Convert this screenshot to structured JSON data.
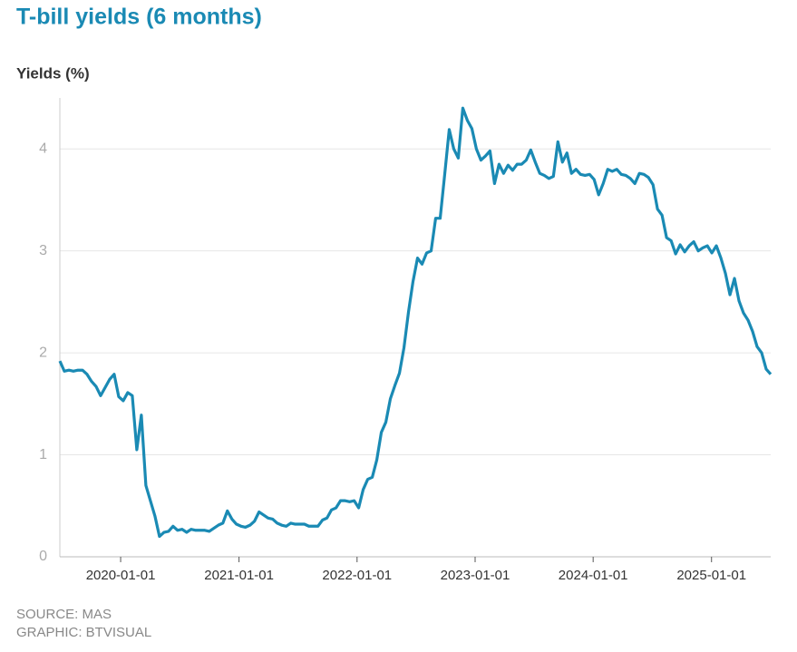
{
  "chart_data": {
    "type": "line",
    "title": "T-bill yields (6 months)",
    "y_label": "Yields (%)",
    "source": "SOURCE: MAS",
    "credit": "GRAPHIC: BTVISUAL",
    "x": [
      "2019-06-27",
      "2019-07-11",
      "2019-07-25",
      "2019-08-08",
      "2019-08-22",
      "2019-09-05",
      "2019-09-19",
      "2019-10-03",
      "2019-10-17",
      "2019-10-31",
      "2019-11-14",
      "2019-11-28",
      "2019-12-12",
      "2019-12-26",
      "2020-01-09",
      "2020-01-23",
      "2020-02-06",
      "2020-02-20",
      "2020-03-05",
      "2020-03-19",
      "2020-04-02",
      "2020-04-16",
      "2020-04-30",
      "2020-05-14",
      "2020-05-28",
      "2020-06-11",
      "2020-06-25",
      "2020-07-09",
      "2020-07-23",
      "2020-08-06",
      "2020-08-20",
      "2020-09-03",
      "2020-09-17",
      "2020-10-01",
      "2020-10-15",
      "2020-10-29",
      "2020-11-12",
      "2020-11-26",
      "2020-12-10",
      "2020-12-24",
      "2021-01-07",
      "2021-01-21",
      "2021-02-04",
      "2021-02-18",
      "2021-03-04",
      "2021-03-18",
      "2021-04-01",
      "2021-04-15",
      "2021-04-29",
      "2021-05-13",
      "2021-05-27",
      "2021-06-10",
      "2021-06-24",
      "2021-07-08",
      "2021-07-22",
      "2021-08-05",
      "2021-08-19",
      "2021-09-02",
      "2021-09-16",
      "2021-09-30",
      "2021-10-14",
      "2021-10-28",
      "2021-11-11",
      "2021-11-25",
      "2021-12-09",
      "2021-12-23",
      "2022-01-06",
      "2022-01-20",
      "2022-02-03",
      "2022-02-17",
      "2022-03-03",
      "2022-03-17",
      "2022-03-31",
      "2022-04-14",
      "2022-04-28",
      "2022-05-12",
      "2022-05-26",
      "2022-06-09",
      "2022-06-23",
      "2022-07-07",
      "2022-07-21",
      "2022-08-04",
      "2022-08-18",
      "2022-09-01",
      "2022-09-15",
      "2022-09-29",
      "2022-10-13",
      "2022-10-27",
      "2022-11-10",
      "2022-11-24",
      "2022-12-08",
      "2022-12-22",
      "2023-01-05",
      "2023-01-19",
      "2023-02-02",
      "2023-02-16",
      "2023-03-02",
      "2023-03-16",
      "2023-03-30",
      "2023-04-13",
      "2023-04-27",
      "2023-05-11",
      "2023-05-25",
      "2023-06-08",
      "2023-06-22",
      "2023-07-06",
      "2023-07-20",
      "2023-08-03",
      "2023-08-17",
      "2023-08-31",
      "2023-09-14",
      "2023-09-28",
      "2023-10-12",
      "2023-10-26",
      "2023-11-09",
      "2023-11-23",
      "2023-12-07",
      "2023-12-21",
      "2024-01-04",
      "2024-01-18",
      "2024-02-01",
      "2024-02-15",
      "2024-02-29",
      "2024-03-14",
      "2024-03-28",
      "2024-04-11",
      "2024-04-25",
      "2024-05-09",
      "2024-05-23",
      "2024-06-06",
      "2024-06-20",
      "2024-07-04",
      "2024-07-18",
      "2024-08-01",
      "2024-08-15",
      "2024-08-29",
      "2024-09-12",
      "2024-09-26",
      "2024-10-10",
      "2024-10-24",
      "2024-11-07",
      "2024-11-21",
      "2024-12-05",
      "2024-12-19",
      "2025-01-02",
      "2025-01-16",
      "2025-01-30",
      "2025-02-13",
      "2025-02-27",
      "2025-03-13",
      "2025-03-27",
      "2025-04-10",
      "2025-04-24",
      "2025-05-08",
      "2025-05-22",
      "2025-06-05",
      "2025-06-19",
      "2025-07-03"
    ],
    "series": [
      {
        "name": "6-month T-bill",
        "color": "#1a8ab4",
        "values": [
          1.92,
          1.82,
          1.83,
          1.82,
          1.83,
          1.83,
          1.79,
          1.72,
          1.67,
          1.58,
          1.66,
          1.74,
          1.79,
          1.57,
          1.53,
          1.61,
          1.58,
          1.05,
          1.39,
          0.7,
          0.55,
          0.4,
          0.2,
          0.24,
          0.25,
          0.3,
          0.26,
          0.27,
          0.24,
          0.27,
          0.26,
          0.26,
          0.26,
          0.25,
          0.28,
          0.31,
          0.33,
          0.45,
          0.37,
          0.32,
          0.3,
          0.29,
          0.31,
          0.35,
          0.44,
          0.41,
          0.38,
          0.37,
          0.33,
          0.31,
          0.3,
          0.33,
          0.32,
          0.32,
          0.32,
          0.3,
          0.3,
          0.3,
          0.36,
          0.38,
          0.46,
          0.48,
          0.55,
          0.55,
          0.54,
          0.55,
          0.48,
          0.66,
          0.76,
          0.78,
          0.95,
          1.22,
          1.32,
          1.55,
          1.68,
          1.8,
          2.05,
          2.4,
          2.7,
          2.93,
          2.87,
          2.98,
          3.0,
          3.32,
          3.32,
          3.75,
          4.19,
          4.0,
          3.91,
          4.4,
          4.28,
          4.2,
          4.0,
          3.89,
          3.93,
          3.98,
          3.66,
          3.85,
          3.76,
          3.84,
          3.79,
          3.85,
          3.85,
          3.89,
          3.99,
          3.87,
          3.76,
          3.74,
          3.71,
          3.73,
          4.07,
          3.87,
          3.96,
          3.76,
          3.8,
          3.75,
          3.74,
          3.75,
          3.7,
          3.55,
          3.66,
          3.8,
          3.78,
          3.8,
          3.75,
          3.74,
          3.71,
          3.66,
          3.76,
          3.75,
          3.72,
          3.65,
          3.41,
          3.35,
          3.13,
          3.1,
          2.97,
          3.06,
          2.99,
          3.05,
          3.09,
          3.0,
          3.03,
          3.05,
          2.98,
          3.05,
          2.93,
          2.78,
          2.57,
          2.73,
          2.51,
          2.39,
          2.32,
          2.21,
          2.06,
          2.0,
          1.84,
          1.79
        ]
      }
    ],
    "xlim": [
      "2019-06-27",
      "2025-07-03"
    ],
    "xticks": [
      "2020-01-01",
      "2021-01-01",
      "2022-01-01",
      "2023-01-01",
      "2024-01-01",
      "2025-01-01"
    ],
    "ylim": [
      0,
      4.5
    ],
    "yticks": [
      0,
      1,
      2,
      3,
      4
    ],
    "grid": true
  }
}
